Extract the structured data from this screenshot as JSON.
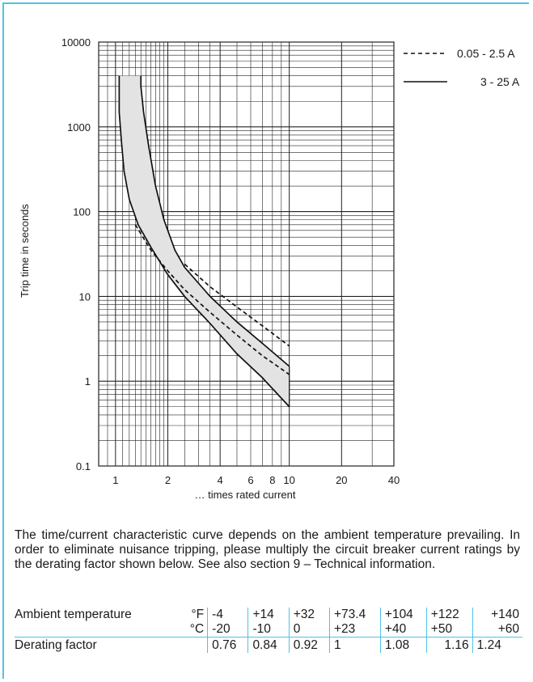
{
  "chart_data": {
    "type": "line",
    "xlabel": "… times rated current",
    "ylabel": "Trip time in seconds",
    "x_scale": "log",
    "y_scale": "log",
    "xlim": [
      0.8,
      40
    ],
    "ylim": [
      0.1,
      10000
    ],
    "x_ticks": [
      "1",
      "2",
      "4",
      "6",
      "8",
      "10",
      "20",
      "40"
    ],
    "x_tick_values": [
      1,
      2,
      4,
      6,
      8,
      10,
      20,
      40
    ],
    "y_ticks": [
      "10000",
      "1000",
      "100",
      "10",
      "1",
      "0.1"
    ],
    "y_tick_values": [
      10000,
      1000,
      100,
      10,
      1,
      0.1
    ],
    "grid": true,
    "legend_position": "top-right",
    "series": [
      {
        "name": "3 - 25 A",
        "style": "solid",
        "role": "lower bound",
        "x": [
          1.05,
          1.05,
          1.08,
          1.12,
          1.2,
          1.35,
          1.6,
          2,
          2.5,
          3.5,
          5,
          7,
          10
        ],
        "y": [
          4000,
          1500,
          700,
          300,
          140,
          70,
          38,
          18,
          10,
          4.8,
          2.1,
          1.1,
          0.5
        ]
      },
      {
        "name": "3 - 25 A",
        "style": "solid",
        "role": "upper bound",
        "x": [
          1.4,
          1.4,
          1.45,
          1.55,
          1.7,
          1.9,
          2.2,
          2.5,
          3.5,
          5,
          7,
          10
        ],
        "y": [
          4000,
          3000,
          1500,
          600,
          200,
          80,
          35,
          22,
          10,
          5,
          2.8,
          1.5
        ]
      },
      {
        "name": "0.05 - 2.5 A",
        "style": "dashed",
        "role": "lower bound",
        "x": [
          1.3,
          1.6,
          2,
          2.5,
          3.5,
          5,
          7,
          10
        ],
        "y": [
          70,
          35,
          20,
          12,
          6.5,
          3.5,
          2,
          1.2
        ]
      },
      {
        "name": "0.05 - 2.5 A",
        "style": "dashed",
        "role": "upper bound",
        "x": [
          2.5,
          3.5,
          5,
          7,
          10
        ],
        "y": [
          24,
          13,
          7.5,
          4.5,
          2.6
        ]
      }
    ],
    "band_fill": "#e3e3e3",
    "line_color": "#111111"
  },
  "legend": {
    "dashed_label": "0.05 - 2.5 A",
    "solid_label": "3 - 25 A"
  },
  "description": "The time/current characteristic curve depends on the ambient temperature prevailing. In order to eliminate nuisance tripping, please multiply the circuit breaker current ratings by the derating factor shown below. See also section 9 – Technical information.",
  "table": {
    "ambient_label": "Ambient temperature",
    "unit_f": "°F",
    "unit_c": "°C",
    "fahrenheit": [
      "-4",
      "+14",
      "+32",
      "+73.4",
      "+104",
      "+122",
      "+140"
    ],
    "celsius": [
      "-20",
      "-10",
      "0",
      "+23",
      "+40",
      "+50",
      "+60"
    ],
    "derating_label": "Derating factor",
    "derating": [
      "0.76",
      "0.84",
      "0.92",
      "1",
      "1.08",
      "1.16",
      "1.24"
    ]
  },
  "colors": {
    "accent": "#4fc2e6",
    "text": "#1a1a1a"
  }
}
